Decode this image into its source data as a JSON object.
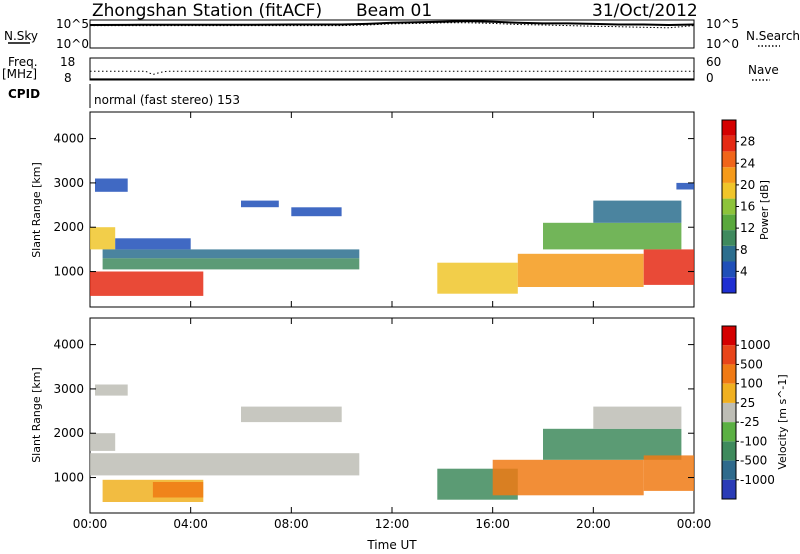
{
  "header": {
    "station": "Zhongshan Station (fitACF)",
    "beam": "Beam 01",
    "date": "31/Oct/2012"
  },
  "strips": {
    "sky": {
      "left_label": "N.Sky",
      "left_ticks": [
        "10^5",
        "10^0"
      ],
      "right_ticks": [
        "10^5",
        "10^0"
      ],
      "right_label": "N.Search"
    },
    "freq": {
      "left_label_1": "Freq.",
      "left_label_2": "[MHz]",
      "left_ticks": [
        "18",
        "8"
      ],
      "right_ticks": [
        "60",
        "0"
      ],
      "right_label": "Nave"
    },
    "cpid": {
      "label": "CPID",
      "mode": "normal (fast stereo) 153"
    }
  },
  "colors": {
    "power_scale": [
      "#1f2fd2",
      "#1f4fb8",
      "#2c6e8e",
      "#3f8a5e",
      "#59a83c",
      "#8dc33a",
      "#f0c52a",
      "#f59a1a",
      "#f0651a",
      "#e52a14",
      "#d40000"
    ],
    "velocity_scale": [
      "#2a3bb6",
      "#2f6a8c",
      "#3e8a5c",
      "#5bb043",
      "#bdbdb5",
      "#f0b020",
      "#f07a14",
      "#e8451a",
      "#d40000"
    ]
  },
  "chart_data": [
    {
      "type": "line",
      "panel": "N.Sky / N.Search",
      "x_unit": "hours UT",
      "xlim": [
        0,
        24
      ],
      "series": [
        {
          "name": "N.Sky",
          "x": [
            0,
            2,
            4,
            6,
            8,
            10,
            11,
            12,
            13,
            14,
            15,
            16,
            17,
            18,
            19,
            20,
            21,
            22,
            23,
            24
          ],
          "values": [
            0.82,
            0.83,
            0.83,
            0.83,
            0.84,
            0.84,
            0.86,
            0.9,
            0.92,
            0.94,
            0.96,
            0.94,
            0.9,
            0.88,
            0.88,
            0.86,
            0.84,
            0.84,
            0.82,
            0.84
          ]
        },
        {
          "name": "N.Search",
          "x": [
            0,
            2,
            4,
            6,
            8,
            10,
            11,
            12,
            13,
            14,
            15,
            16,
            17,
            18,
            19,
            20,
            21,
            22,
            23,
            24
          ],
          "values": [
            0.8,
            0.8,
            0.8,
            0.8,
            0.8,
            0.8,
            0.82,
            0.86,
            0.88,
            0.9,
            0.9,
            0.88,
            0.84,
            0.82,
            0.8,
            0.78,
            0.76,
            0.74,
            0.72,
            0.8
          ]
        }
      ]
    },
    {
      "type": "line",
      "panel": "Freq / Nave",
      "x_unit": "hours UT",
      "xlim": [
        0,
        24
      ],
      "ylim": [
        8,
        18
      ],
      "series": [
        {
          "name": "Freq.",
          "x": [
            0,
            24
          ],
          "values": [
            8.4,
            8.4
          ]
        },
        {
          "name": "Nave",
          "x": [
            0,
            2.2,
            2.5,
            2.8,
            3.1,
            24
          ],
          "values": [
            12,
            12,
            10.5,
            11.5,
            12,
            12
          ]
        }
      ]
    },
    {
      "type": "heatmap",
      "panel": "Power",
      "xlabel": "",
      "ylabel": "Slant Range [km]",
      "xlim": [
        0,
        24
      ],
      "ylim": [
        200,
        4600
      ],
      "x_ticks": [
        "00:00",
        "04:00",
        "08:00",
        "12:00",
        "16:00",
        "20:00",
        "00:00"
      ],
      "y_ticks": [
        1000,
        2000,
        3000,
        4000
      ],
      "colorbar_label": "Power [dB]",
      "colorbar_ticks": [
        4,
        8,
        12,
        16,
        20,
        24,
        28
      ],
      "regions": [
        {
          "t0": 0.0,
          "t1": 4.5,
          "r0": 450,
          "r1": 1000,
          "level": 0.88
        },
        {
          "t0": 0.0,
          "t1": 1.0,
          "r0": 1500,
          "r1": 2000,
          "level": 0.6
        },
        {
          "t0": 0.5,
          "t1": 10.7,
          "r0": 1300,
          "r1": 1500,
          "level": 0.2
        },
        {
          "t0": 0.5,
          "t1": 10.7,
          "r0": 1050,
          "r1": 1300,
          "level": 0.28
        },
        {
          "t0": 1.0,
          "t1": 4.0,
          "r0": 1500,
          "r1": 1750,
          "level": 0.12
        },
        {
          "t0": 6.0,
          "t1": 7.5,
          "r0": 2450,
          "r1": 2600,
          "level": 0.1
        },
        {
          "t0": 8.0,
          "t1": 10.0,
          "r0": 2250,
          "r1": 2450,
          "level": 0.12
        },
        {
          "t0": 0.2,
          "t1": 1.5,
          "r0": 2800,
          "r1": 3100,
          "level": 0.05
        },
        {
          "t0": 13.8,
          "t1": 17.0,
          "r0": 500,
          "r1": 1200,
          "level": 0.55
        },
        {
          "t0": 17.0,
          "t1": 22.0,
          "r0": 650,
          "r1": 1400,
          "level": 0.65
        },
        {
          "t0": 18.0,
          "t1": 23.5,
          "r0": 1500,
          "r1": 2100,
          "level": 0.35
        },
        {
          "t0": 20.0,
          "t1": 23.5,
          "r0": 2100,
          "r1": 2600,
          "level": 0.15
        },
        {
          "t0": 22.0,
          "t1": 24.0,
          "r0": 700,
          "r1": 1500,
          "level": 0.92
        },
        {
          "t0": 23.3,
          "t1": 24.0,
          "r0": 2850,
          "r1": 3000,
          "level": 0.05
        }
      ]
    },
    {
      "type": "heatmap",
      "panel": "Velocity",
      "xlabel": "Time UT",
      "ylabel": "Slant Range [km]",
      "xlim": [
        0,
        24
      ],
      "ylim": [
        200,
        4600
      ],
      "x_ticks": [
        "00:00",
        "04:00",
        "08:00",
        "12:00",
        "16:00",
        "20:00",
        "00:00"
      ],
      "y_ticks": [
        1000,
        2000,
        3000,
        4000
      ],
      "colorbar_label": "Velocity [m s^-1]",
      "colorbar_ticks": [
        1000,
        500,
        100,
        25,
        -25,
        -100,
        -500,
        -1000
      ],
      "regions": [
        {
          "t0": 0.0,
          "t1": 10.7,
          "r0": 1050,
          "r1": 1550,
          "level": 0.45
        },
        {
          "t0": 0.0,
          "t1": 1.0,
          "r0": 1600,
          "r1": 2000,
          "level": 0.45
        },
        {
          "t0": 0.5,
          "t1": 4.5,
          "r0": 450,
          "r1": 950,
          "level": 0.62
        },
        {
          "t0": 2.5,
          "t1": 4.5,
          "r0": 550,
          "r1": 900,
          "level": 0.78
        },
        {
          "t0": 6.0,
          "t1": 10.0,
          "r0": 2250,
          "r1": 2600,
          "level": 0.45
        },
        {
          "t0": 0.2,
          "t1": 1.5,
          "r0": 2850,
          "r1": 3100,
          "level": 0.45
        },
        {
          "t0": 13.8,
          "t1": 17.0,
          "r0": 500,
          "r1": 1200,
          "level": 0.2
        },
        {
          "t0": 16.0,
          "t1": 22.0,
          "r0": 600,
          "r1": 1400,
          "level": 0.7
        },
        {
          "t0": 18.0,
          "t1": 23.5,
          "r0": 1400,
          "r1": 2100,
          "level": 0.3
        },
        {
          "t0": 20.0,
          "t1": 23.5,
          "r0": 2100,
          "r1": 2600,
          "level": 0.45
        },
        {
          "t0": 22.0,
          "t1": 24.0,
          "r0": 700,
          "r1": 1500,
          "level": 0.72
        }
      ]
    }
  ]
}
